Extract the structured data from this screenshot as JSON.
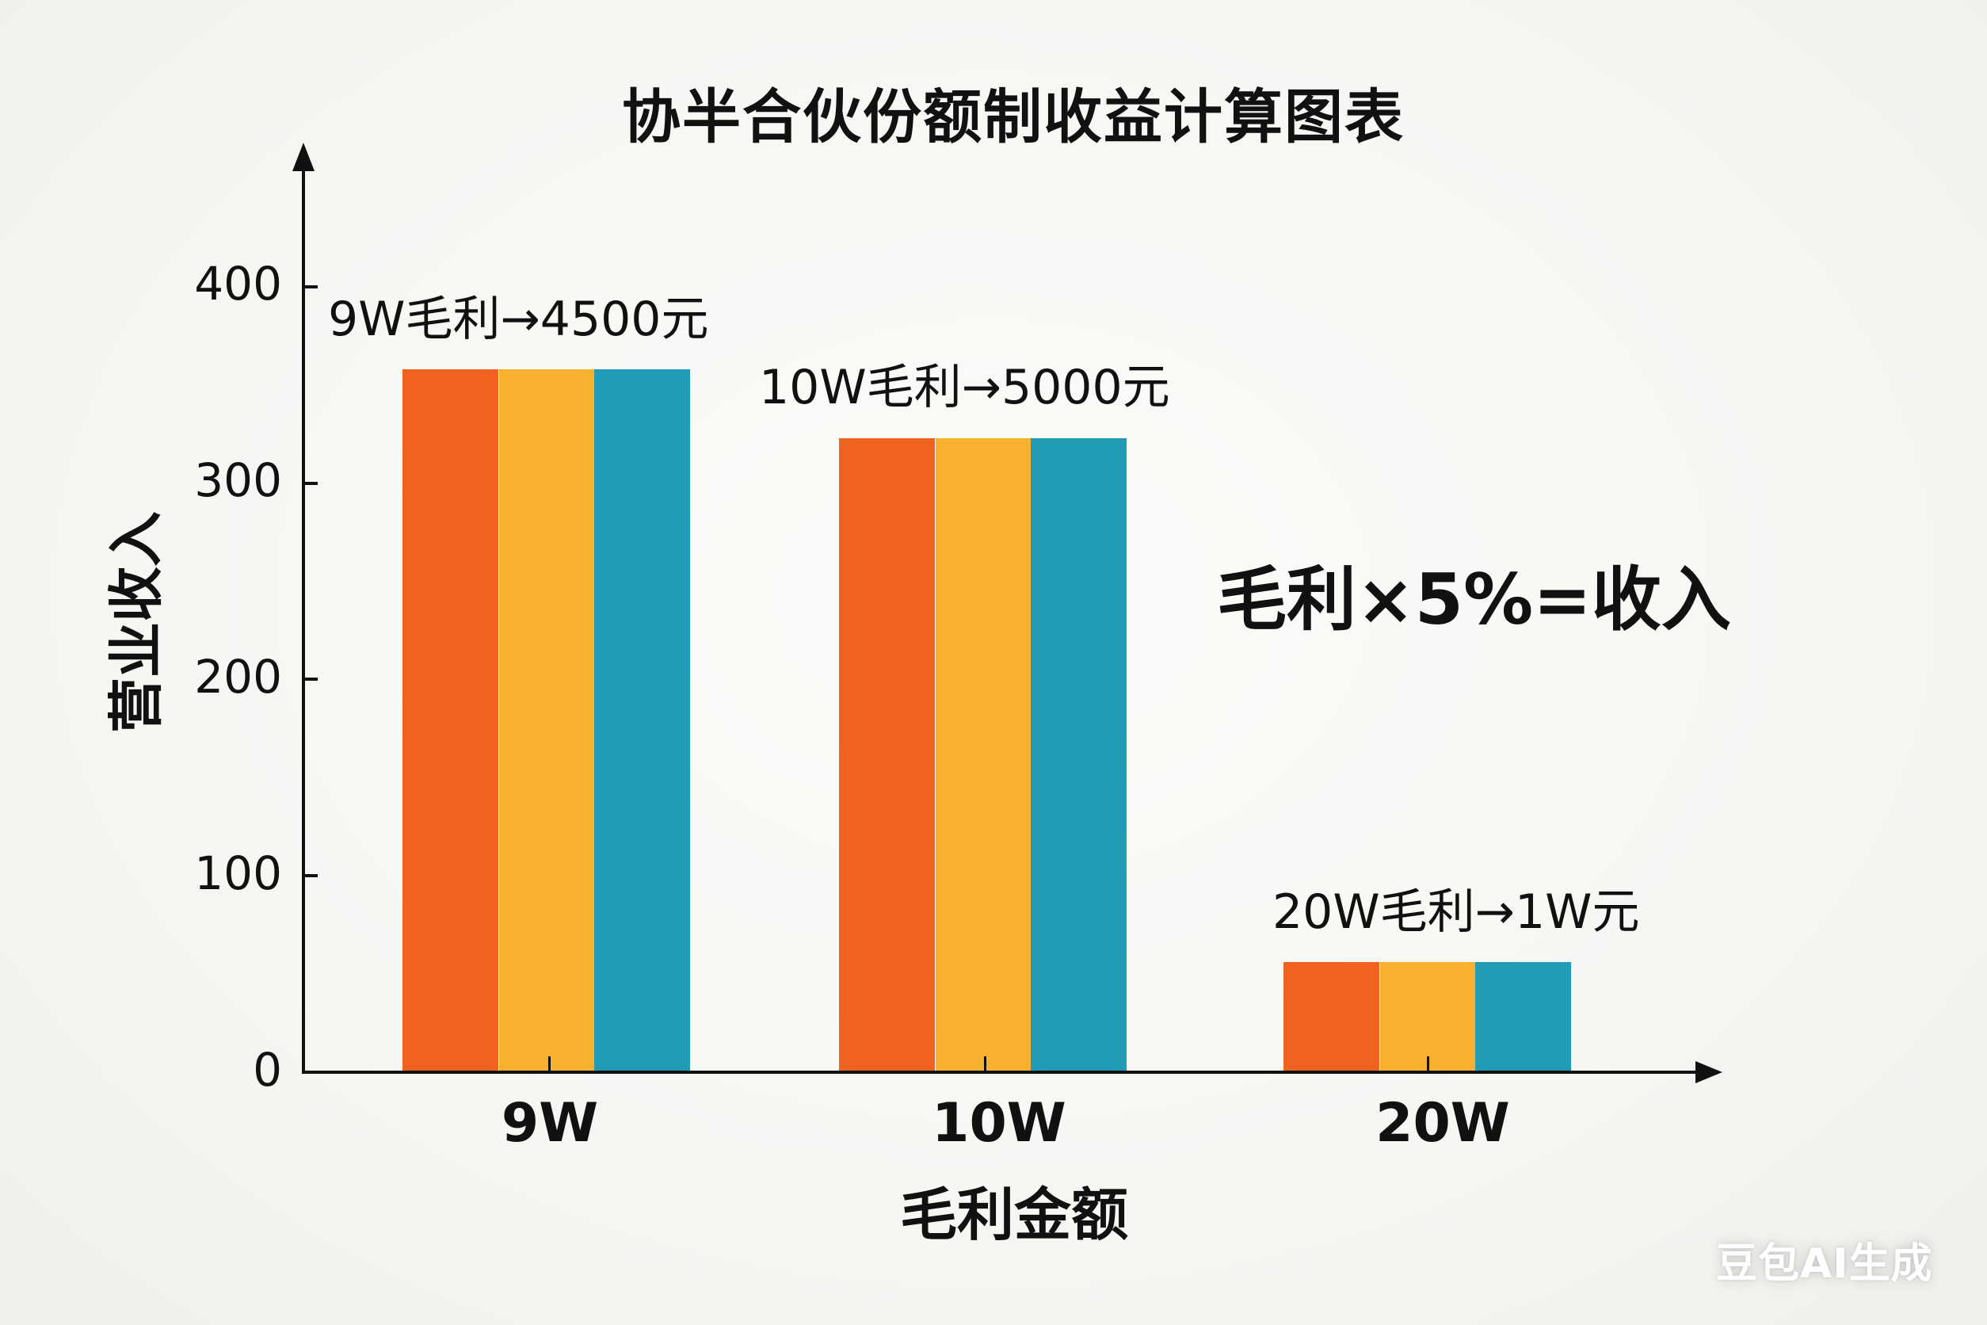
{
  "title": "协半合伙份额制收益计算图表",
  "colors": {
    "series_1": "#ef6220",
    "series_2": "#f8b12e",
    "series_3": "#229bb4",
    "axis": "#111111",
    "background": "#f7f7f4"
  },
  "annotations": [
    "9W毛利→4500元",
    "10W毛利→5000元",
    "20W毛利→1W元"
  ],
  "formula": "毛利×5%=收入",
  "watermark": "豆包AI生成",
  "y_axis": {
    "title": "营业收入",
    "ticks": [
      "0",
      "100",
      "200",
      "300",
      "400"
    ]
  },
  "x_axis": {
    "title": "毛利金额",
    "ticks": [
      "9W",
      "10W",
      "20W"
    ]
  },
  "chart_data": {
    "type": "bar",
    "title": "协半合伙份额制收益计算图表",
    "xlabel": "毛利金额",
    "ylabel": "营业收入",
    "categories": [
      "9W",
      "10W",
      "20W"
    ],
    "series": [
      {
        "name": "series_1 (orange)",
        "color": "#ef6220",
        "values": [
          358,
          323,
          56
        ]
      },
      {
        "name": "series_2 (yellow)",
        "color": "#f8b12e",
        "values": [
          358,
          323,
          56
        ]
      },
      {
        "name": "series_3 (teal)",
        "color": "#229bb4",
        "values": [
          358,
          323,
          56
        ]
      }
    ],
    "ylim": [
      0,
      400
    ],
    "yticks": [
      0,
      100,
      200,
      300,
      400
    ],
    "grid": false,
    "legend": "none",
    "annotations": [
      {
        "category": "9W",
        "text": "9W毛利→4500元"
      },
      {
        "category": "10W",
        "text": "10W毛利→5000元"
      },
      {
        "category": "20W",
        "text": "20W毛利→1W元"
      },
      {
        "text": "毛利×5%=收入"
      }
    ]
  }
}
